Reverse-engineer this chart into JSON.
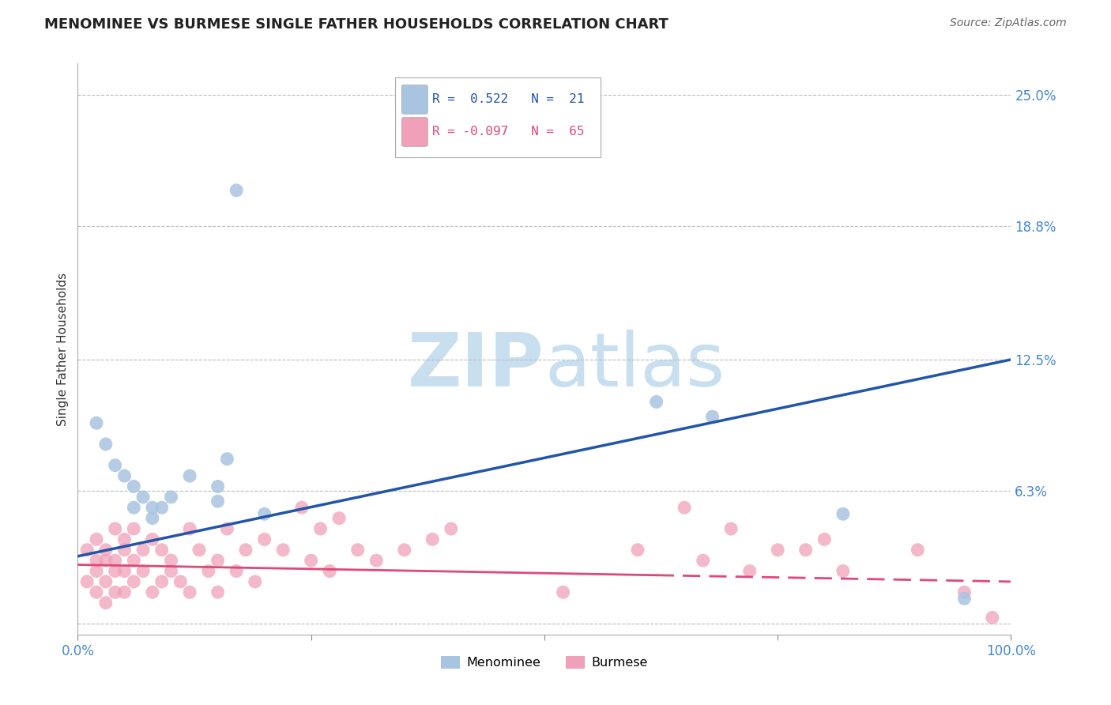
{
  "title": "MENOMINEE VS BURMESE SINGLE FATHER HOUSEHOLDS CORRELATION CHART",
  "source_text": "Source: ZipAtlas.com",
  "ylabel": "Single Father Households",
  "xlim": [
    0,
    100
  ],
  "ylim": [
    -0.5,
    26.5
  ],
  "yticks": [
    0,
    6.3,
    12.5,
    18.8,
    25.0
  ],
  "ytick_labels": [
    "",
    "6.3%",
    "12.5%",
    "18.8%",
    "25.0%"
  ],
  "xticks": [
    0,
    25,
    50,
    75,
    100
  ],
  "xtick_labels": [
    "0.0%",
    "",
    "",
    "",
    "100.0%"
  ],
  "menominee_R": 0.522,
  "menominee_N": 21,
  "burmese_R": -0.097,
  "burmese_N": 65,
  "menominee_color": "#a8c4e0",
  "menominee_line_color": "#2255aa",
  "burmese_color": "#f0a0b8",
  "burmese_line_color": "#e04878",
  "background_color": "#ffffff",
  "watermark_zip_color": "#c8dff0",
  "watermark_atlas_color": "#c8dff0",
  "title_fontsize": 13,
  "axis_label_fontsize": 11,
  "tick_fontsize": 12,
  "menominee_x": [
    2,
    3,
    4,
    5,
    6,
    6,
    7,
    8,
    8,
    9,
    10,
    12,
    15,
    15,
    16,
    17,
    20,
    62,
    68,
    82,
    95
  ],
  "menominee_y": [
    9.5,
    8.5,
    7.5,
    7.0,
    6.5,
    5.5,
    6.0,
    5.5,
    5.0,
    5.5,
    6.0,
    7.0,
    5.8,
    6.5,
    7.8,
    20.5,
    5.2,
    10.5,
    9.8,
    5.2,
    1.2
  ],
  "burmese_x": [
    1,
    1,
    2,
    2,
    2,
    2,
    3,
    3,
    3,
    3,
    4,
    4,
    4,
    4,
    5,
    5,
    5,
    5,
    6,
    6,
    6,
    7,
    7,
    8,
    8,
    9,
    9,
    10,
    10,
    11,
    12,
    12,
    13,
    14,
    15,
    15,
    16,
    17,
    18,
    19,
    20,
    22,
    24,
    25,
    26,
    27,
    28,
    30,
    32,
    35,
    38,
    40,
    52,
    60,
    65,
    67,
    70,
    72,
    75,
    78,
    80,
    82,
    90,
    95,
    98
  ],
  "burmese_y": [
    2.0,
    3.5,
    1.5,
    2.5,
    3.0,
    4.0,
    1.0,
    2.0,
    3.0,
    3.5,
    1.5,
    2.5,
    3.0,
    4.5,
    1.5,
    2.5,
    3.5,
    4.0,
    2.0,
    3.0,
    4.5,
    2.5,
    3.5,
    1.5,
    4.0,
    2.0,
    3.5,
    2.5,
    3.0,
    2.0,
    1.5,
    4.5,
    3.5,
    2.5,
    1.5,
    3.0,
    4.5,
    2.5,
    3.5,
    2.0,
    4.0,
    3.5,
    5.5,
    3.0,
    4.5,
    2.5,
    5.0,
    3.5,
    3.0,
    3.5,
    4.0,
    4.5,
    1.5,
    3.5,
    5.5,
    3.0,
    4.5,
    2.5,
    3.5,
    3.5,
    4.0,
    2.5,
    3.5,
    1.5,
    0.3
  ],
  "men_line_x0": 0,
  "men_line_y0": 3.2,
  "men_line_x1": 100,
  "men_line_y1": 12.5,
  "bur_line_x0": 0,
  "bur_line_y0": 2.8,
  "bur_line_x1": 100,
  "bur_line_y1": 2.0,
  "bur_solid_end": 62,
  "legend_text1": "R =  0.522   N =  21",
  "legend_text2": "R = -0.097   N =  65"
}
